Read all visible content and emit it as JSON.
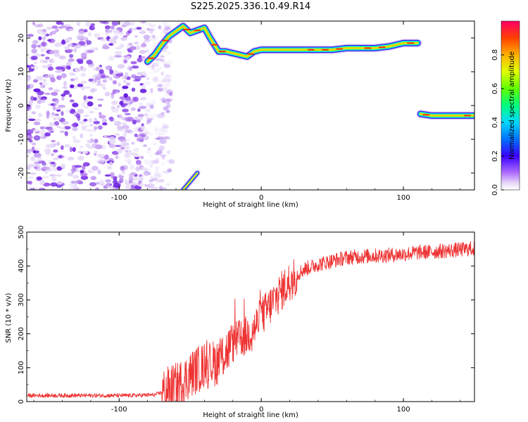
{
  "title": "S225.2025.336.10.49.R14",
  "colors": {
    "signal_line": "#ee3333",
    "noise_purple": "#7722ee",
    "axis": "#000000"
  },
  "chart_data": [
    {
      "type": "heatmap",
      "xlabel": "Height of straight line (km)",
      "ylabel": "Frequency (Hz)",
      "xlim": [
        -165,
        150
      ],
      "ylim": [
        -25,
        25
      ],
      "xticks": [
        -100,
        0,
        100
      ],
      "yticks": [
        -20,
        -10,
        0,
        10,
        20
      ],
      "grid": false,
      "noise_region": {
        "x_range": [
          -165,
          -75
        ],
        "y_range": [
          -25,
          25
        ],
        "level": "low (0.0 - 0.2)"
      },
      "ridges": [
        {
          "name": "upper ridge",
          "points": [
            [
              -80,
              13
            ],
            [
              -75,
              15
            ],
            [
              -70,
              18
            ],
            [
              -65,
              20.5
            ],
            [
              -60,
              22
            ],
            [
              -55,
              23.5
            ],
            [
              -50,
              21.5
            ],
            [
              -40,
              23
            ],
            [
              -36,
              20
            ],
            [
              -30,
              16
            ],
            [
              -25,
              16
            ],
            [
              -20,
              15.5
            ],
            [
              -15,
              15
            ],
            [
              -10,
              14.5
            ],
            [
              -5,
              16
            ],
            [
              0,
              16.5
            ],
            [
              10,
              16.5
            ],
            [
              20,
              16.5
            ],
            [
              30,
              16.5
            ],
            [
              40,
              16.5
            ],
            [
              50,
              16.5
            ],
            [
              60,
              17
            ],
            [
              70,
              17
            ],
            [
              80,
              17
            ],
            [
              90,
              17.5
            ],
            [
              100,
              18.5
            ],
            [
              110,
              18.5
            ]
          ]
        },
        {
          "name": "lower ridge",
          "points": [
            [
              112,
              -2.5
            ],
            [
              120,
              -3
            ],
            [
              130,
              -3
            ],
            [
              140,
              -3
            ],
            [
              150,
              -3
            ]
          ]
        },
        {
          "name": "bottom ridge",
          "points": [
            [
              -55,
              -25
            ],
            [
              -45,
              -20
            ]
          ]
        }
      ],
      "colorbar": {
        "label": "Normalized spectral amplitude",
        "range": [
          0.0,
          1.0
        ],
        "ticks": [
          "0.0",
          "0.2",
          "0.4",
          "0.6",
          "0.8"
        ]
      }
    },
    {
      "type": "line",
      "xlabel": "Height of straight line (km)",
      "ylabel": "SNR (10 * v/v)",
      "xlim": [
        -165,
        150
      ],
      "ylim": [
        0,
        500
      ],
      "xticks": [
        -100,
        0,
        100
      ],
      "yticks": [
        0,
        100,
        200,
        300,
        400,
        500
      ],
      "grid": false,
      "series": [
        {
          "name": "SNR",
          "color": "#ee3333",
          "x": [
            -165,
            -150,
            -130,
            -110,
            -90,
            -75,
            -68,
            -60,
            -55,
            -50,
            -45,
            -40,
            -35,
            -30,
            -25,
            -20,
            -15,
            -10,
            -5,
            0,
            5,
            10,
            15,
            20,
            25,
            30,
            40,
            50,
            60,
            70,
            80,
            90,
            100,
            110,
            120,
            130,
            140,
            150
          ],
          "values": [
            18,
            18,
            18,
            18,
            18,
            20,
            30,
            45,
            60,
            80,
            95,
            105,
            110,
            120,
            145,
            170,
            185,
            195,
            215,
            250,
            275,
            305,
            330,
            355,
            375,
            390,
            405,
            415,
            425,
            428,
            430,
            432,
            435,
            440,
            442,
            445,
            448,
            452
          ]
        }
      ]
    }
  ]
}
